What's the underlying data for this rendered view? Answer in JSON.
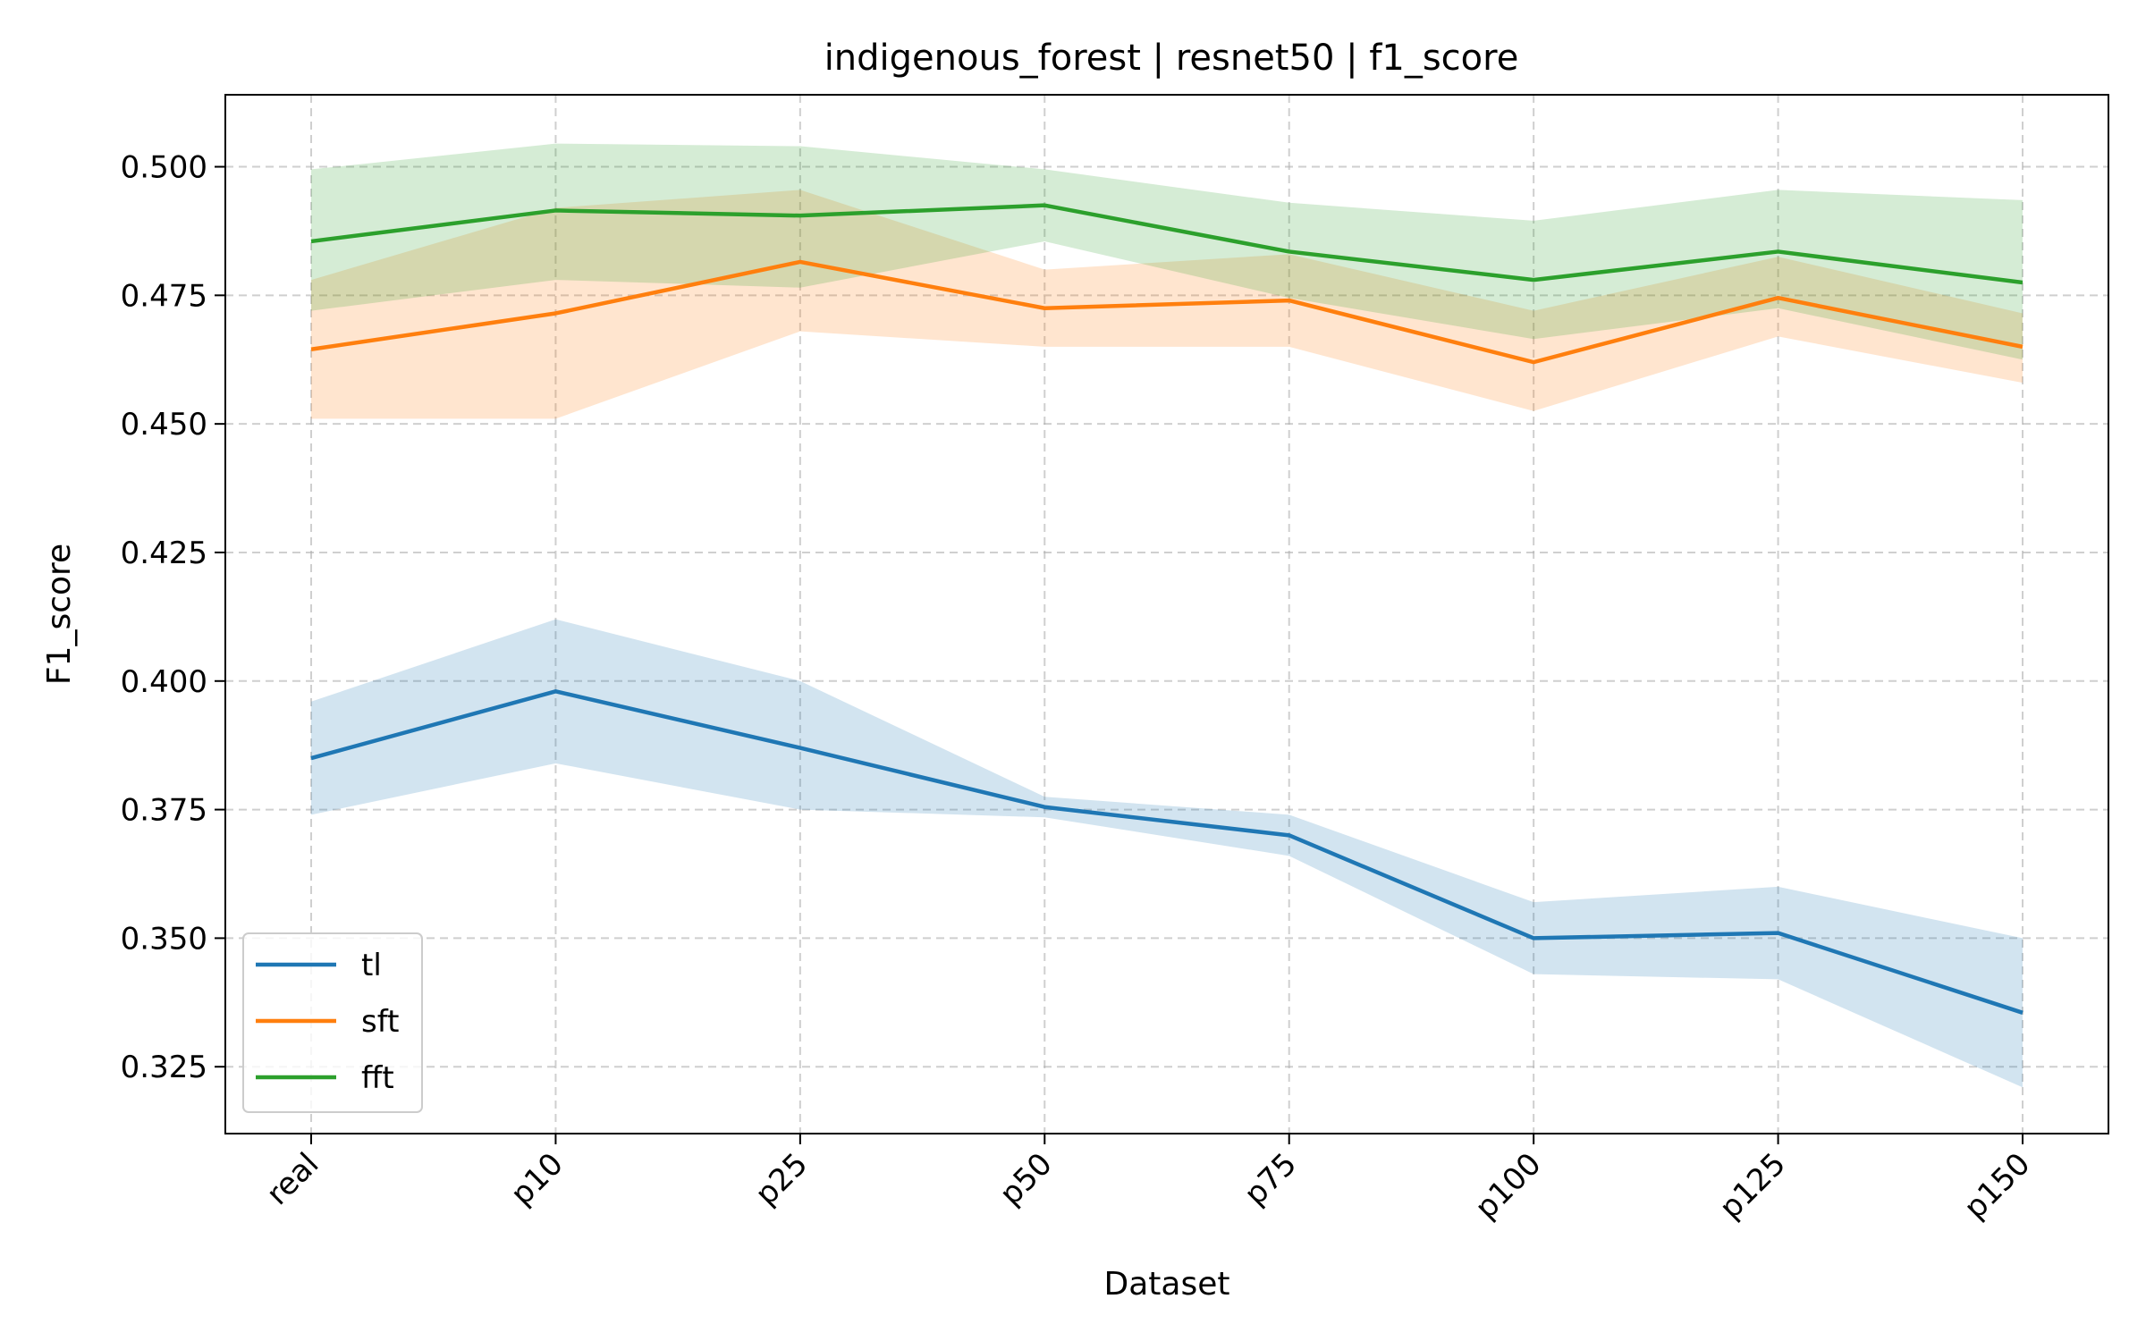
{
  "chart_data": {
    "type": "line",
    "title": "indigenous_forest | resnet50 | f1_score",
    "xlabel": "Dataset",
    "ylabel": "F1_score",
    "categories": [
      "real",
      "p10",
      "p25",
      "p50",
      "p75",
      "p100",
      "p125",
      "p150"
    ],
    "ylim": [
      0.312,
      0.514
    ],
    "yticks": [
      "0.325",
      "0.350",
      "0.375",
      "0.400",
      "0.425",
      "0.450",
      "0.475",
      "0.500"
    ],
    "grid": true,
    "legend_position": "lower-left",
    "series": [
      {
        "name": "tl",
        "color": "#1f77b4",
        "values": [
          0.385,
          0.398,
          0.387,
          0.3755,
          0.37,
          0.35,
          0.351,
          0.3355
        ],
        "band_lower": [
          0.374,
          0.384,
          0.375,
          0.3735,
          0.366,
          0.343,
          0.342,
          0.321
        ],
        "band_upper": [
          0.396,
          0.412,
          0.4,
          0.3775,
          0.374,
          0.357,
          0.36,
          0.35
        ]
      },
      {
        "name": "sft",
        "color": "#ff7f0e",
        "values": [
          0.4645,
          0.4715,
          0.4815,
          0.4725,
          0.474,
          0.462,
          0.4745,
          0.465
        ],
        "band_lower": [
          0.451,
          0.451,
          0.468,
          0.465,
          0.465,
          0.4525,
          0.467,
          0.458
        ],
        "band_upper": [
          0.478,
          0.492,
          0.4955,
          0.48,
          0.483,
          0.472,
          0.4825,
          0.4715
        ]
      },
      {
        "name": "fft",
        "color": "#2ca02c",
        "values": [
          0.4855,
          0.4915,
          0.4905,
          0.4925,
          0.4835,
          0.478,
          0.4835,
          0.4775
        ],
        "band_lower": [
          0.472,
          0.478,
          0.4765,
          0.4855,
          0.4745,
          0.4665,
          0.4725,
          0.4625
        ],
        "band_upper": [
          0.4995,
          0.5045,
          0.504,
          0.4995,
          0.493,
          0.4895,
          0.4955,
          0.4935
        ]
      }
    ]
  }
}
